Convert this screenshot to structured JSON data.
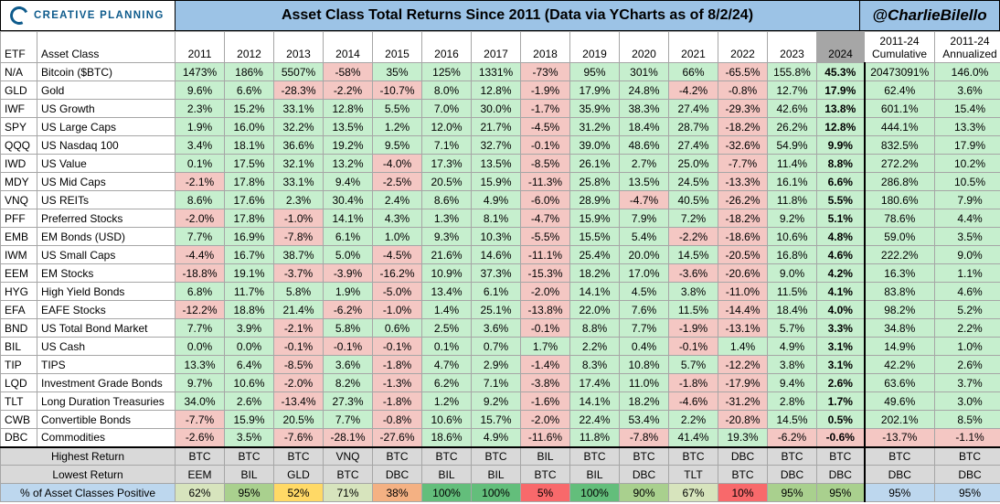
{
  "header": {
    "logo_text": "CREATIVE PLANNING",
    "title": "Asset Class Total Returns Since 2011 (Data via YCharts as of 8/2/24)",
    "handle": "@CharlieBilello"
  },
  "colors": {
    "positive": "#c6efce",
    "negative": "#f4c7c3",
    "title_bg": "#9cc3e6",
    "summary_bg": "#d9d9d9",
    "pct_label_bg": "#bdd7ee"
  },
  "chart_data": {
    "type": "table",
    "title": "Asset Class Total Returns Since 2011 (Data via YCharts as of 8/2/24)",
    "columns": [
      "ETF",
      "Asset Class",
      "2011",
      "2012",
      "2013",
      "2014",
      "2015",
      "2016",
      "2017",
      "2018",
      "2019",
      "2020",
      "2021",
      "2022",
      "2023",
      "2024",
      "2011-24 Cumulative",
      "2011-24 Annualized"
    ],
    "rows": [
      {
        "etf": "N/A",
        "asset": "Bitcoin ($BTC)",
        "values": [
          "1473%",
          "186%",
          "5507%",
          "-58%",
          "35%",
          "125%",
          "1331%",
          "-73%",
          "95%",
          "301%",
          "66%",
          "-65.5%",
          "155.8%",
          "45.3%",
          "20473091%",
          "146.0%"
        ]
      },
      {
        "etf": "GLD",
        "asset": "Gold",
        "values": [
          "9.6%",
          "6.6%",
          "-28.3%",
          "-2.2%",
          "-10.7%",
          "8.0%",
          "12.8%",
          "-1.9%",
          "17.9%",
          "24.8%",
          "-4.2%",
          "-0.8%",
          "12.7%",
          "17.9%",
          "62.4%",
          "3.6%"
        ]
      },
      {
        "etf": "IWF",
        "asset": "US Growth",
        "values": [
          "2.3%",
          "15.2%",
          "33.1%",
          "12.8%",
          "5.5%",
          "7.0%",
          "30.0%",
          "-1.7%",
          "35.9%",
          "38.3%",
          "27.4%",
          "-29.3%",
          "42.6%",
          "13.8%",
          "601.1%",
          "15.4%"
        ]
      },
      {
        "etf": "SPY",
        "asset": "US Large Caps",
        "values": [
          "1.9%",
          "16.0%",
          "32.2%",
          "13.5%",
          "1.2%",
          "12.0%",
          "21.7%",
          "-4.5%",
          "31.2%",
          "18.4%",
          "28.7%",
          "-18.2%",
          "26.2%",
          "12.8%",
          "444.1%",
          "13.3%"
        ]
      },
      {
        "etf": "QQQ",
        "asset": "US Nasdaq 100",
        "values": [
          "3.4%",
          "18.1%",
          "36.6%",
          "19.2%",
          "9.5%",
          "7.1%",
          "32.7%",
          "-0.1%",
          "39.0%",
          "48.6%",
          "27.4%",
          "-32.6%",
          "54.9%",
          "9.9%",
          "832.5%",
          "17.9%"
        ]
      },
      {
        "etf": "IWD",
        "asset": "US Value",
        "values": [
          "0.1%",
          "17.5%",
          "32.1%",
          "13.2%",
          "-4.0%",
          "17.3%",
          "13.5%",
          "-8.5%",
          "26.1%",
          "2.7%",
          "25.0%",
          "-7.7%",
          "11.4%",
          "8.8%",
          "272.2%",
          "10.2%"
        ]
      },
      {
        "etf": "MDY",
        "asset": "US Mid Caps",
        "values": [
          "-2.1%",
          "17.8%",
          "33.1%",
          "9.4%",
          "-2.5%",
          "20.5%",
          "15.9%",
          "-11.3%",
          "25.8%",
          "13.5%",
          "24.5%",
          "-13.3%",
          "16.1%",
          "6.6%",
          "286.8%",
          "10.5%"
        ]
      },
      {
        "etf": "VNQ",
        "asset": "US REITs",
        "values": [
          "8.6%",
          "17.6%",
          "2.3%",
          "30.4%",
          "2.4%",
          "8.6%",
          "4.9%",
          "-6.0%",
          "28.9%",
          "-4.7%",
          "40.5%",
          "-26.2%",
          "11.8%",
          "5.5%",
          "180.6%",
          "7.9%"
        ]
      },
      {
        "etf": "PFF",
        "asset": "Preferred Stocks",
        "values": [
          "-2.0%",
          "17.8%",
          "-1.0%",
          "14.1%",
          "4.3%",
          "1.3%",
          "8.1%",
          "-4.7%",
          "15.9%",
          "7.9%",
          "7.2%",
          "-18.2%",
          "9.2%",
          "5.1%",
          "78.6%",
          "4.4%"
        ]
      },
      {
        "etf": "EMB",
        "asset": "EM Bonds (USD)",
        "values": [
          "7.7%",
          "16.9%",
          "-7.8%",
          "6.1%",
          "1.0%",
          "9.3%",
          "10.3%",
          "-5.5%",
          "15.5%",
          "5.4%",
          "-2.2%",
          "-18.6%",
          "10.6%",
          "4.8%",
          "59.0%",
          "3.5%"
        ]
      },
      {
        "etf": "IWM",
        "asset": "US Small Caps",
        "values": [
          "-4.4%",
          "16.7%",
          "38.7%",
          "5.0%",
          "-4.5%",
          "21.6%",
          "14.6%",
          "-11.1%",
          "25.4%",
          "20.0%",
          "14.5%",
          "-20.5%",
          "16.8%",
          "4.6%",
          "222.2%",
          "9.0%"
        ]
      },
      {
        "etf": "EEM",
        "asset": "EM Stocks",
        "values": [
          "-18.8%",
          "19.1%",
          "-3.7%",
          "-3.9%",
          "-16.2%",
          "10.9%",
          "37.3%",
          "-15.3%",
          "18.2%",
          "17.0%",
          "-3.6%",
          "-20.6%",
          "9.0%",
          "4.2%",
          "16.3%",
          "1.1%"
        ]
      },
      {
        "etf": "HYG",
        "asset": "High Yield Bonds",
        "values": [
          "6.8%",
          "11.7%",
          "5.8%",
          "1.9%",
          "-5.0%",
          "13.4%",
          "6.1%",
          "-2.0%",
          "14.1%",
          "4.5%",
          "3.8%",
          "-11.0%",
          "11.5%",
          "4.1%",
          "83.8%",
          "4.6%"
        ]
      },
      {
        "etf": "EFA",
        "asset": "EAFE Stocks",
        "values": [
          "-12.2%",
          "18.8%",
          "21.4%",
          "-6.2%",
          "-1.0%",
          "1.4%",
          "25.1%",
          "-13.8%",
          "22.0%",
          "7.6%",
          "11.5%",
          "-14.4%",
          "18.4%",
          "4.0%",
          "98.2%",
          "5.2%"
        ]
      },
      {
        "etf": "BND",
        "asset": "US Total Bond Market",
        "values": [
          "7.7%",
          "3.9%",
          "-2.1%",
          "5.8%",
          "0.6%",
          "2.5%",
          "3.6%",
          "-0.1%",
          "8.8%",
          "7.7%",
          "-1.9%",
          "-13.1%",
          "5.7%",
          "3.3%",
          "34.8%",
          "2.2%"
        ]
      },
      {
        "etf": "BIL",
        "asset": "US Cash",
        "values": [
          "0.0%",
          "0.0%",
          "-0.1%",
          "-0.1%",
          "-0.1%",
          "0.1%",
          "0.7%",
          "1.7%",
          "2.2%",
          "0.4%",
          "-0.1%",
          "1.4%",
          "4.9%",
          "3.1%",
          "14.9%",
          "1.0%"
        ]
      },
      {
        "etf": "TIP",
        "asset": "TIPS",
        "values": [
          "13.3%",
          "6.4%",
          "-8.5%",
          "3.6%",
          "-1.8%",
          "4.7%",
          "2.9%",
          "-1.4%",
          "8.3%",
          "10.8%",
          "5.7%",
          "-12.2%",
          "3.8%",
          "3.1%",
          "42.2%",
          "2.6%"
        ]
      },
      {
        "etf": "LQD",
        "asset": "Investment Grade Bonds",
        "values": [
          "9.7%",
          "10.6%",
          "-2.0%",
          "8.2%",
          "-1.3%",
          "6.2%",
          "7.1%",
          "-3.8%",
          "17.4%",
          "11.0%",
          "-1.8%",
          "-17.9%",
          "9.4%",
          "2.6%",
          "63.6%",
          "3.7%"
        ]
      },
      {
        "etf": "TLT",
        "asset": "Long Duration Treasuries",
        "values": [
          "34.0%",
          "2.6%",
          "-13.4%",
          "27.3%",
          "-1.8%",
          "1.2%",
          "9.2%",
          "-1.6%",
          "14.1%",
          "18.2%",
          "-4.6%",
          "-31.2%",
          "2.8%",
          "1.7%",
          "49.6%",
          "3.0%"
        ]
      },
      {
        "etf": "CWB",
        "asset": "Convertible Bonds",
        "values": [
          "-7.7%",
          "15.9%",
          "20.5%",
          "7.7%",
          "-0.8%",
          "10.6%",
          "15.7%",
          "-2.0%",
          "22.4%",
          "53.4%",
          "2.2%",
          "-20.8%",
          "14.5%",
          "0.5%",
          "202.1%",
          "8.5%"
        ]
      },
      {
        "etf": "DBC",
        "asset": "Commodities",
        "values": [
          "-2.6%",
          "3.5%",
          "-7.6%",
          "-28.1%",
          "-27.6%",
          "18.6%",
          "4.9%",
          "-11.6%",
          "11.8%",
          "-7.8%",
          "41.4%",
          "19.3%",
          "-6.2%",
          "-0.6%",
          "-13.7%",
          "-1.1%"
        ]
      }
    ],
    "summary": {
      "highest_label": "Highest Return",
      "highest": [
        "BTC",
        "BTC",
        "BTC",
        "VNQ",
        "BTC",
        "BTC",
        "BTC",
        "BIL",
        "BTC",
        "BTC",
        "BTC",
        "DBC",
        "BTC",
        "BTC",
        "BTC",
        "BTC"
      ],
      "lowest_label": "Lowest Return",
      "lowest": [
        "EEM",
        "BIL",
        "GLD",
        "BTC",
        "DBC",
        "BIL",
        "BIL",
        "BTC",
        "BIL",
        "DBC",
        "TLT",
        "BTC",
        "DBC",
        "DBC",
        "DBC",
        "DBC"
      ],
      "pct_label": "% of Asset Classes Positive",
      "pct": [
        "62%",
        "95%",
        "52%",
        "71%",
        "38%",
        "100%",
        "100%",
        "5%",
        "100%",
        "90%",
        "67%",
        "10%",
        "95%",
        "95%",
        "95%",
        "95%"
      ]
    }
  }
}
